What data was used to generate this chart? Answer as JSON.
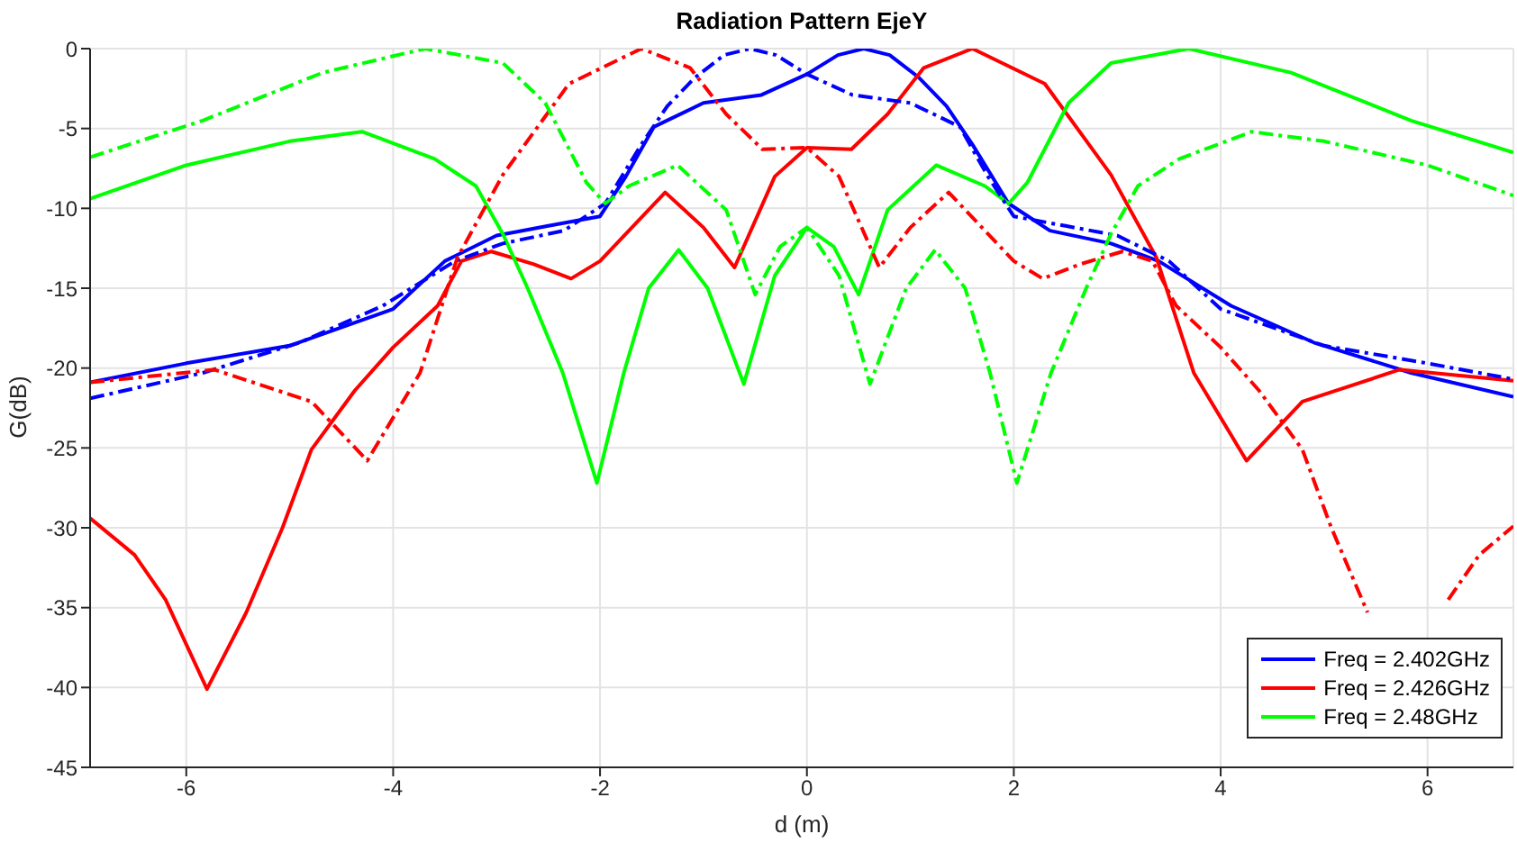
{
  "chart_data": {
    "type": "line",
    "title": "Radiation Pattern EjeY",
    "xlabel": "d (m)",
    "ylabel": "G(dB)",
    "xlim": [
      -6.93,
      6.83
    ],
    "xticks": [
      -6,
      -4,
      -2,
      0,
      2,
      4,
      6
    ],
    "ylim": [
      -45,
      0
    ],
    "yticks": [
      -45,
      -40,
      -35,
      -30,
      -25,
      -20,
      -15,
      -10,
      -5,
      0
    ],
    "grid": true,
    "legend": "bottom right",
    "marker": "none",
    "series": [
      {
        "name": "Freq = 2.402GHz",
        "color": "#0000ff",
        "line_style": "solid",
        "x": [
          -6.93,
          -6,
          -5,
          -4,
          -3.5,
          -3,
          -2.5,
          -2,
          -1.75,
          -1.48,
          -1,
          -0.44,
          0,
          0.3,
          0.55,
          0.8,
          1.08,
          1.35,
          1.6,
          1.95,
          2.35,
          2.94,
          3.4,
          4.1,
          4.9,
          5.84,
          6.83
        ],
        "values": [
          -20.9,
          -19.7,
          -18.6,
          -16.3,
          -13.3,
          -11.7,
          -11.1,
          -10.5,
          -8,
          -4.9,
          -3.4,
          -2.9,
          -1.6,
          -0.4,
          0,
          -0.4,
          -1.8,
          -3.6,
          -6,
          -9.7,
          -11.4,
          -12.2,
          -13.3,
          -16.1,
          -18.4,
          -20.3,
          -21.8
        ]
      },
      {
        "name": "Freq = 2.426GHz",
        "color": "#ff0000",
        "line_style": "solid",
        "x": [
          -6.93,
          -6.5,
          -6.2,
          -5.8,
          -5.42,
          -5.07,
          -4.79,
          -4.37,
          -4,
          -3.57,
          -3.34,
          -3.05,
          -2.64,
          -2.28,
          -2,
          -1.37,
          -1,
          -0.7,
          -0.31,
          0,
          0.43,
          0.78,
          1.13,
          1.6,
          2.3,
          2.94,
          3.38,
          3.74,
          4.25,
          4.79,
          5.73,
          6.83
        ],
        "values": [
          -29.4,
          -31.7,
          -34.5,
          -40.1,
          -35.3,
          -30,
          -25.1,
          -21.4,
          -18.7,
          -16.1,
          -13.3,
          -12.7,
          -13.5,
          -14.4,
          -13.3,
          -9,
          -11.2,
          -13.7,
          -8,
          -6.2,
          -6.3,
          -4.1,
          -1.2,
          0,
          -2.2,
          -7.9,
          -13.1,
          -20.3,
          -25.8,
          -22.1,
          -20.1,
          -20.8
        ]
      },
      {
        "name": "Freq = 2.48GHz",
        "color": "#00ff00",
        "line_style": "solid",
        "x": [
          -6.93,
          -6,
          -5,
          -4.3,
          -3.6,
          -3.2,
          -2.94,
          -2.7,
          -2.36,
          -2.03,
          -1.77,
          -1.53,
          -1.24,
          -0.96,
          -0.61,
          -0.31,
          0,
          0.26,
          0.5,
          0.78,
          1.25,
          1.72,
          1.95,
          2.13,
          2.53,
          2.94,
          3.69,
          4.68,
          5.84,
          6.83
        ],
        "values": [
          -9.4,
          -7.3,
          -5.8,
          -5.2,
          -6.9,
          -8.6,
          -11.6,
          -15,
          -20.3,
          -27.2,
          -20.3,
          -15,
          -12.6,
          -15,
          -21,
          -14.2,
          -11.2,
          -12.4,
          -15.4,
          -10.1,
          -7.3,
          -8.6,
          -9.7,
          -8.4,
          -3.4,
          -0.9,
          0,
          -1.5,
          -4.5,
          -6.5
        ]
      },
      {
        "color": "#0000ff",
        "line_style": "dashdot",
        "x": [
          -6.93,
          -5.84,
          -4.9,
          -4.1,
          -3.4,
          -2.94,
          -2.35,
          -1.95,
          -1.6,
          -1.35,
          -1.08,
          -0.8,
          -0.55,
          -0.3,
          0,
          0.44,
          1,
          1.48,
          1.75,
          2,
          2.5,
          3,
          3.5,
          4,
          5,
          6,
          6.83
        ],
        "values": [
          -21.9,
          -20.3,
          -18.4,
          -16.1,
          -13.3,
          -12.2,
          -11.4,
          -9.7,
          -6,
          -3.6,
          -1.8,
          -0.4,
          0,
          -0.4,
          -1.6,
          -2.9,
          -3.4,
          -4.9,
          -8,
          -10.5,
          -11.1,
          -11.7,
          -13.3,
          -16.3,
          -18.6,
          -19.7,
          -20.7
        ]
      },
      {
        "color": "#ff0000",
        "line_style": "dashdot",
        "x": [
          -6.93,
          -5.73,
          -4.79,
          -4.25,
          -3.74,
          -3.38,
          -2.94,
          -2.3,
          -1.6,
          -1.13,
          -0.78,
          -0.43,
          0,
          0.31,
          0.7,
          1,
          1.37,
          2,
          2.28,
          2.64,
          3.05,
          3.34,
          3.57,
          4,
          4.37,
          4.79,
          5.07,
          5.42,
          5.8,
          6.2,
          6.5,
          6.83
        ],
        "values": [
          -20.9,
          -20.1,
          -22.1,
          -25.8,
          -20.3,
          -13.1,
          -7.9,
          -2.2,
          0,
          -1.2,
          -4.1,
          -6.3,
          -6.2,
          -8,
          -13.7,
          -11.2,
          -9,
          -13.3,
          -14.4,
          -13.5,
          -12.7,
          -13.3,
          -16.1,
          -18.7,
          -21.4,
          -25.1,
          -30,
          -35.3,
          null,
          -34.5,
          -31.7,
          -29.9
        ]
      },
      {
        "color": "#00ff00",
        "line_style": "dashdot",
        "x": [
          -6.93,
          -5.84,
          -4.68,
          -3.69,
          -2.94,
          -2.53,
          -2.13,
          -1.95,
          -1.72,
          -1.25,
          -0.78,
          -0.5,
          -0.26,
          0,
          0.31,
          0.61,
          0.96,
          1.24,
          1.53,
          1.77,
          2.03,
          2.36,
          2.7,
          2.94,
          3.2,
          3.6,
          4.3,
          5,
          6,
          6.83
        ],
        "values": [
          -6.8,
          -4.5,
          -1.5,
          0,
          -0.9,
          -3.4,
          -8.4,
          -9.7,
          -8.6,
          -7.3,
          -10.1,
          -15.4,
          -12.4,
          -11.2,
          -14.2,
          -21,
          -15,
          -12.6,
          -15,
          -20.3,
          -27.2,
          -20.3,
          -15,
          -11.6,
          -8.6,
          -6.9,
          -5.2,
          -5.8,
          -7.3,
          -9.2
        ]
      }
    ]
  }
}
